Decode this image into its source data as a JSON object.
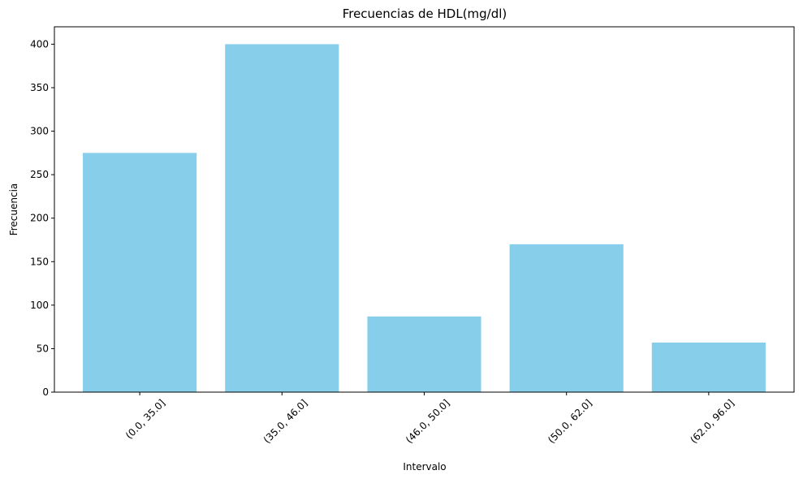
{
  "chart_data": {
    "type": "bar",
    "title": "Frecuencias de HDL(mg/dl)",
    "xlabel": "Intervalo",
    "ylabel": "Frecuencia",
    "categories": [
      "(0.0, 35.0]",
      "(35.0, 46.0]",
      "(46.0, 50.0]",
      "(50.0, 62.0]",
      "(62.0, 96.0]"
    ],
    "values": [
      275,
      400,
      87,
      170,
      57
    ],
    "ylim": [
      0,
      420
    ],
    "yticks": [
      0,
      50,
      100,
      150,
      200,
      250,
      300,
      350,
      400
    ],
    "bar_color": "#87CEEB",
    "grid": false,
    "xtick_rotation_deg": 45
  }
}
